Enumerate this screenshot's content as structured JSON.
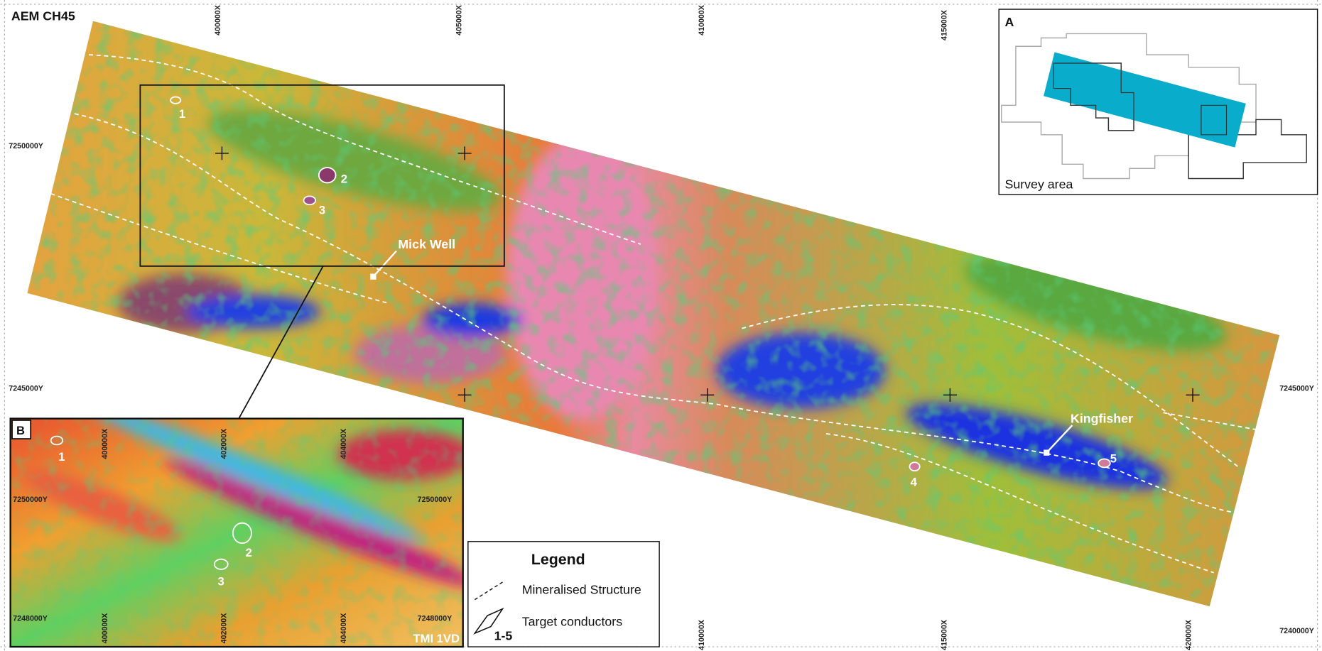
{
  "map": {
    "title": "AEM CH45",
    "x_labels": [
      "400000X",
      "405000X",
      "410000X",
      "415000X",
      "420000X"
    ],
    "y_labels": [
      "7250000Y",
      "7245000Y",
      "7240000Y"
    ],
    "places": [
      "Mick Well",
      "Kingfisher"
    ],
    "targets": [
      "1",
      "2",
      "3",
      "4",
      "5"
    ]
  },
  "inset_a": {
    "letter": "A",
    "caption": "Survey area"
  },
  "inset_b": {
    "letter": "B",
    "x_labels": [
      "400000X",
      "402000X",
      "404000X"
    ],
    "y_labels": [
      "7250000Y",
      "7248000Y"
    ],
    "targets": [
      "1",
      "2",
      "3"
    ],
    "caption": "TMI 1VD"
  },
  "legend": {
    "title": "Legend",
    "items": [
      "Mineralised Structure",
      "Target conductors"
    ],
    "range": "1-5"
  }
}
